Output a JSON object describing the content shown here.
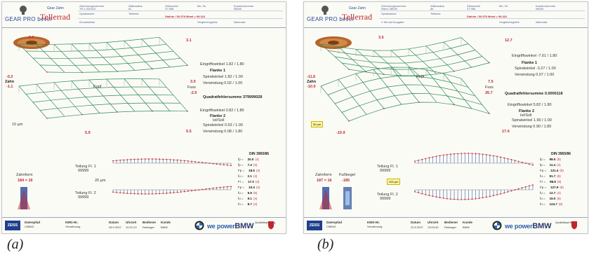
{
  "sheets": [
    {
      "id": "a",
      "brand": "GEAR PRO bevel",
      "part_label": "Gear Zahn",
      "part_name": "Tellerrad",
      "header": {
        "row1": [
          "Zeichnungsnummer",
          "Wälzradius",
          "Zähnezahl",
          "Mo. Nr.",
          "Kundennummer"
        ],
        "row1_values": [
          "TR 4 320419",
          "81",
          "37.968",
          "",
          "08040"
        ],
        "row2": [
          "Spiralwinkel",
          "Teilkreis",
          "",
          "",
          ""
        ],
        "row2_red": "Stahlm / 50.578  Mlmd = 98.322",
        "row3": [
          "Grundwinkel",
          "",
          "Vergleichsgröße",
          "Alternativ"
        ]
      },
      "topo": {
        "top_left": "-3.7",
        "top_right": "3.1",
        "left_zahn": "Zahn",
        "left_red1": "-0.2",
        "left_red2": "-1.1",
        "mid_right1": "3.5",
        "mid_right2": "-2.5",
        "fuss": "Fuss",
        "kopf": "Kopf",
        "bottom_left": "5.9",
        "bottom_right": "5.5",
        "scale": "10 µm"
      },
      "flank1": {
        "title": "Flanke 1",
        "rows": [
          {
            "label": "Eingriffswinkel",
            "value": "1.82 / 1.80"
          },
          {
            "label": "Spiralwinkel",
            "value": "1.82 / 1.00"
          },
          {
            "label": "Verwindung",
            "value": "0.02 / 1.00"
          }
        ]
      },
      "quad": {
        "label": "Quadratfehlersumme",
        "value": "379999028"
      },
      "flank2": {
        "title": "Flanke 2",
        "sub": "Ist/Soll",
        "rows": [
          {
            "label": "Eingriffswinkel",
            "value": "0.82 / 1.80"
          },
          {
            "label": "Spiralwinkel",
            "value": "0.63 / 1.00"
          },
          {
            "label": "Verwindung",
            "value": "0.08 / 1.80"
          }
        ]
      },
      "tool": {
        "label": "Zahnform",
        "value": "184 = 16"
      },
      "pitch": {
        "f1": "Teilung Fl. 1",
        "f2": "Teilung Fl. 2",
        "scale": "20 µm",
        "sub1": "99999",
        "sub2": "99999"
      },
      "din": {
        "title": "DIN 3965/86",
        "rows": [
          {
            "k": "fp =",
            "v": "20.0",
            "q": "(4)"
          },
          {
            "k": "fp =",
            "v": "7.4",
            "q": "(3)"
          },
          {
            "k": "Fp =",
            "v": "18.5",
            "q": "(4)"
          },
          {
            "k": "fu =",
            "v": "2.1",
            "q": "(4)"
          },
          {
            "k": "Fr =",
            "v": "17.0",
            "q": "(4)"
          },
          {
            "k": "Fp =",
            "v": "10.4",
            "q": "(4)"
          },
          {
            "k": "fu =",
            "v": "5.9",
            "q": "(5)"
          },
          {
            "k": "fu =",
            "v": "9.1",
            "q": "(4)"
          },
          {
            "k": "fu =",
            "v": "8.7",
            "q": "(4)"
          }
        ]
      },
      "footer": {
        "zeiss": "ZEISS",
        "col1a": "Datenpfad",
        "col1b": "CMB4Z",
        "col2a": "KMG-Nr.",
        "col2b": "Verzahnung",
        "datum": "Datum",
        "datum_v": "28.9.2007",
        "uhrzeit": "Uhrzeit",
        "uhrzeit_v": "10:21:23",
        "bediener": "Bediener",
        "bediener_v": "Reisinger",
        "kunde": "Kunde",
        "kunde_v": "BMW",
        "we_power": "we power",
        "bmw_word": "BMW",
        "qs": "Qualitätsprüfung"
      }
    },
    {
      "id": "b",
      "brand": "GEAR PRO bevel",
      "part_label": "Gear Zahn",
      "part_name": "Tellerrad",
      "header": {
        "row1": [
          "Zeichnungsnummer",
          "Wälzradius",
          "Zähnezahl",
          "Mo. Nr.",
          "Kundennummer"
        ],
        "row1_values": [
          "Rand: 08040",
          "86",
          "37.968",
          "",
          "08040"
        ],
        "row2": [
          "Spiralwinkel",
          "Teilkreis",
          "",
          "",
          ""
        ],
        "row2_red": "Stahlm / 50.578  Mlmd = 98.322",
        "row3": [
          "4 Teil auf Ausgabe",
          "",
          "Vergleichsgröße",
          "Alternativ"
        ]
      },
      "topo": {
        "top_left": "3.5",
        "top_right": "12.7",
        "left_zahn": "Zahn",
        "left_red1": "-11.6",
        "left_red2": "-10.0",
        "mid_right1": "7.5",
        "mid_right2": "26.7",
        "fuss": "Fuss",
        "kopf": "Kopf",
        "bottom_left": "-10.9",
        "bottom_right": "17.4",
        "scale": "50 µm"
      },
      "flank1": {
        "title": "Flanke 1",
        "rows": [
          {
            "label": "Eingriffswinkel",
            "value": "-7.61 / 1.80"
          },
          {
            "label": "Spiralwinkel",
            "value": "-3.27 / 1.00"
          },
          {
            "label": "Verwindung",
            "value": "0.07 / 1.00"
          }
        ]
      },
      "quad": {
        "label": "Quadratfehlersumme",
        "value": "0.0000118"
      },
      "flank2": {
        "title": "Flanke 2",
        "sub": "Ist/Soll",
        "rows": [
          {
            "label": "Eingriffswinkel",
            "value": "5.82 / 1.80"
          },
          {
            "label": "Spiralwinkel",
            "value": "1.90 / 1.00"
          },
          {
            "label": "Verwindung",
            "value": "0.90 / 1.80"
          }
        ]
      },
      "tool": {
        "label": "Zahnform",
        "value": "187 = 16",
        "label2": "Fußkegel",
        "value2": "-185"
      },
      "pitch": {
        "f1": "Teilung Fl. 1",
        "f2": "Teilung Fl. 2",
        "scale": "200 µm",
        "sub1": "99999",
        "sub2": "99999"
      },
      "din": {
        "title": "DIN 3965/86",
        "rows": [
          {
            "k": "fp =",
            "v": "98.5",
            "q": "(8)"
          },
          {
            "k": "fp =",
            "v": "11.4",
            "q": "(4)"
          },
          {
            "k": "Fp =",
            "v": "121.4",
            "q": "(8)"
          },
          {
            "k": "fu =",
            "v": "91.7",
            "q": "(8)"
          },
          {
            "k": "Fr =",
            "v": "88.8",
            "q": "(8)"
          },
          {
            "k": "Fp =",
            "v": "127.9",
            "q": "(8)"
          },
          {
            "k": "fu =",
            "v": "12.7",
            "q": "(4)"
          },
          {
            "k": "fu =",
            "v": "19.0",
            "q": "(5)"
          },
          {
            "k": "fu =",
            "v": "124.7",
            "q": "(8)"
          }
        ]
      },
      "footer": {
        "zeiss": "ZEISS",
        "col1a": "Datenpfad",
        "col1b": "CMB4Z",
        "col2a": "KMG-Nr.",
        "col2b": "Verzahnung",
        "datum": "Datum",
        "datum_v": "22.5.2007",
        "uhrzeit": "Uhrzeit",
        "uhrzeit_v": "13:03:40",
        "bediener": "Bediener",
        "bediener_v": "Reisinger",
        "kunde": "Kunde",
        "kunde_v": "BMW",
        "we_power": "we power",
        "bmw_word": "BMW",
        "qs": "Qualitätsprüfung"
      }
    }
  ],
  "captions": [
    "(a)",
    "(b)"
  ],
  "colors": {
    "mesh": "#2e8b57",
    "marker": "#c0272d",
    "bars": "#3a5fb0",
    "brand": "#2a4a9a"
  }
}
